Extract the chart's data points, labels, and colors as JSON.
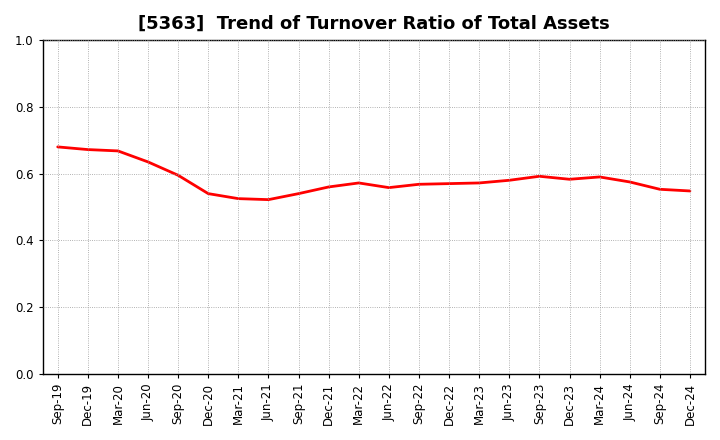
{
  "title": "[5363]  Trend of Turnover Ratio of Total Assets",
  "x_labels": [
    "Sep-19",
    "Dec-19",
    "Mar-20",
    "Jun-20",
    "Sep-20",
    "Dec-20",
    "Mar-21",
    "Jun-21",
    "Sep-21",
    "Dec-21",
    "Mar-22",
    "Jun-22",
    "Sep-22",
    "Dec-22",
    "Mar-23",
    "Jun-23",
    "Sep-23",
    "Dec-23",
    "Mar-24",
    "Jun-24",
    "Sep-24",
    "Dec-24"
  ],
  "y_values": [
    0.68,
    0.672,
    0.668,
    0.635,
    0.595,
    0.54,
    0.525,
    0.522,
    0.54,
    0.56,
    0.572,
    0.558,
    0.568,
    0.57,
    0.572,
    0.58,
    0.592,
    0.583,
    0.59,
    0.575,
    0.553,
    0.548
  ],
  "line_color": "#FF0000",
  "line_width": 2.0,
  "ylim": [
    0.0,
    1.0
  ],
  "yticks": [
    0.0,
    0.2,
    0.4,
    0.6,
    0.8,
    1.0
  ],
  "background_color": "#FFFFFF",
  "grid_color": "#999999",
  "title_fontsize": 13,
  "tick_fontsize": 8.5
}
